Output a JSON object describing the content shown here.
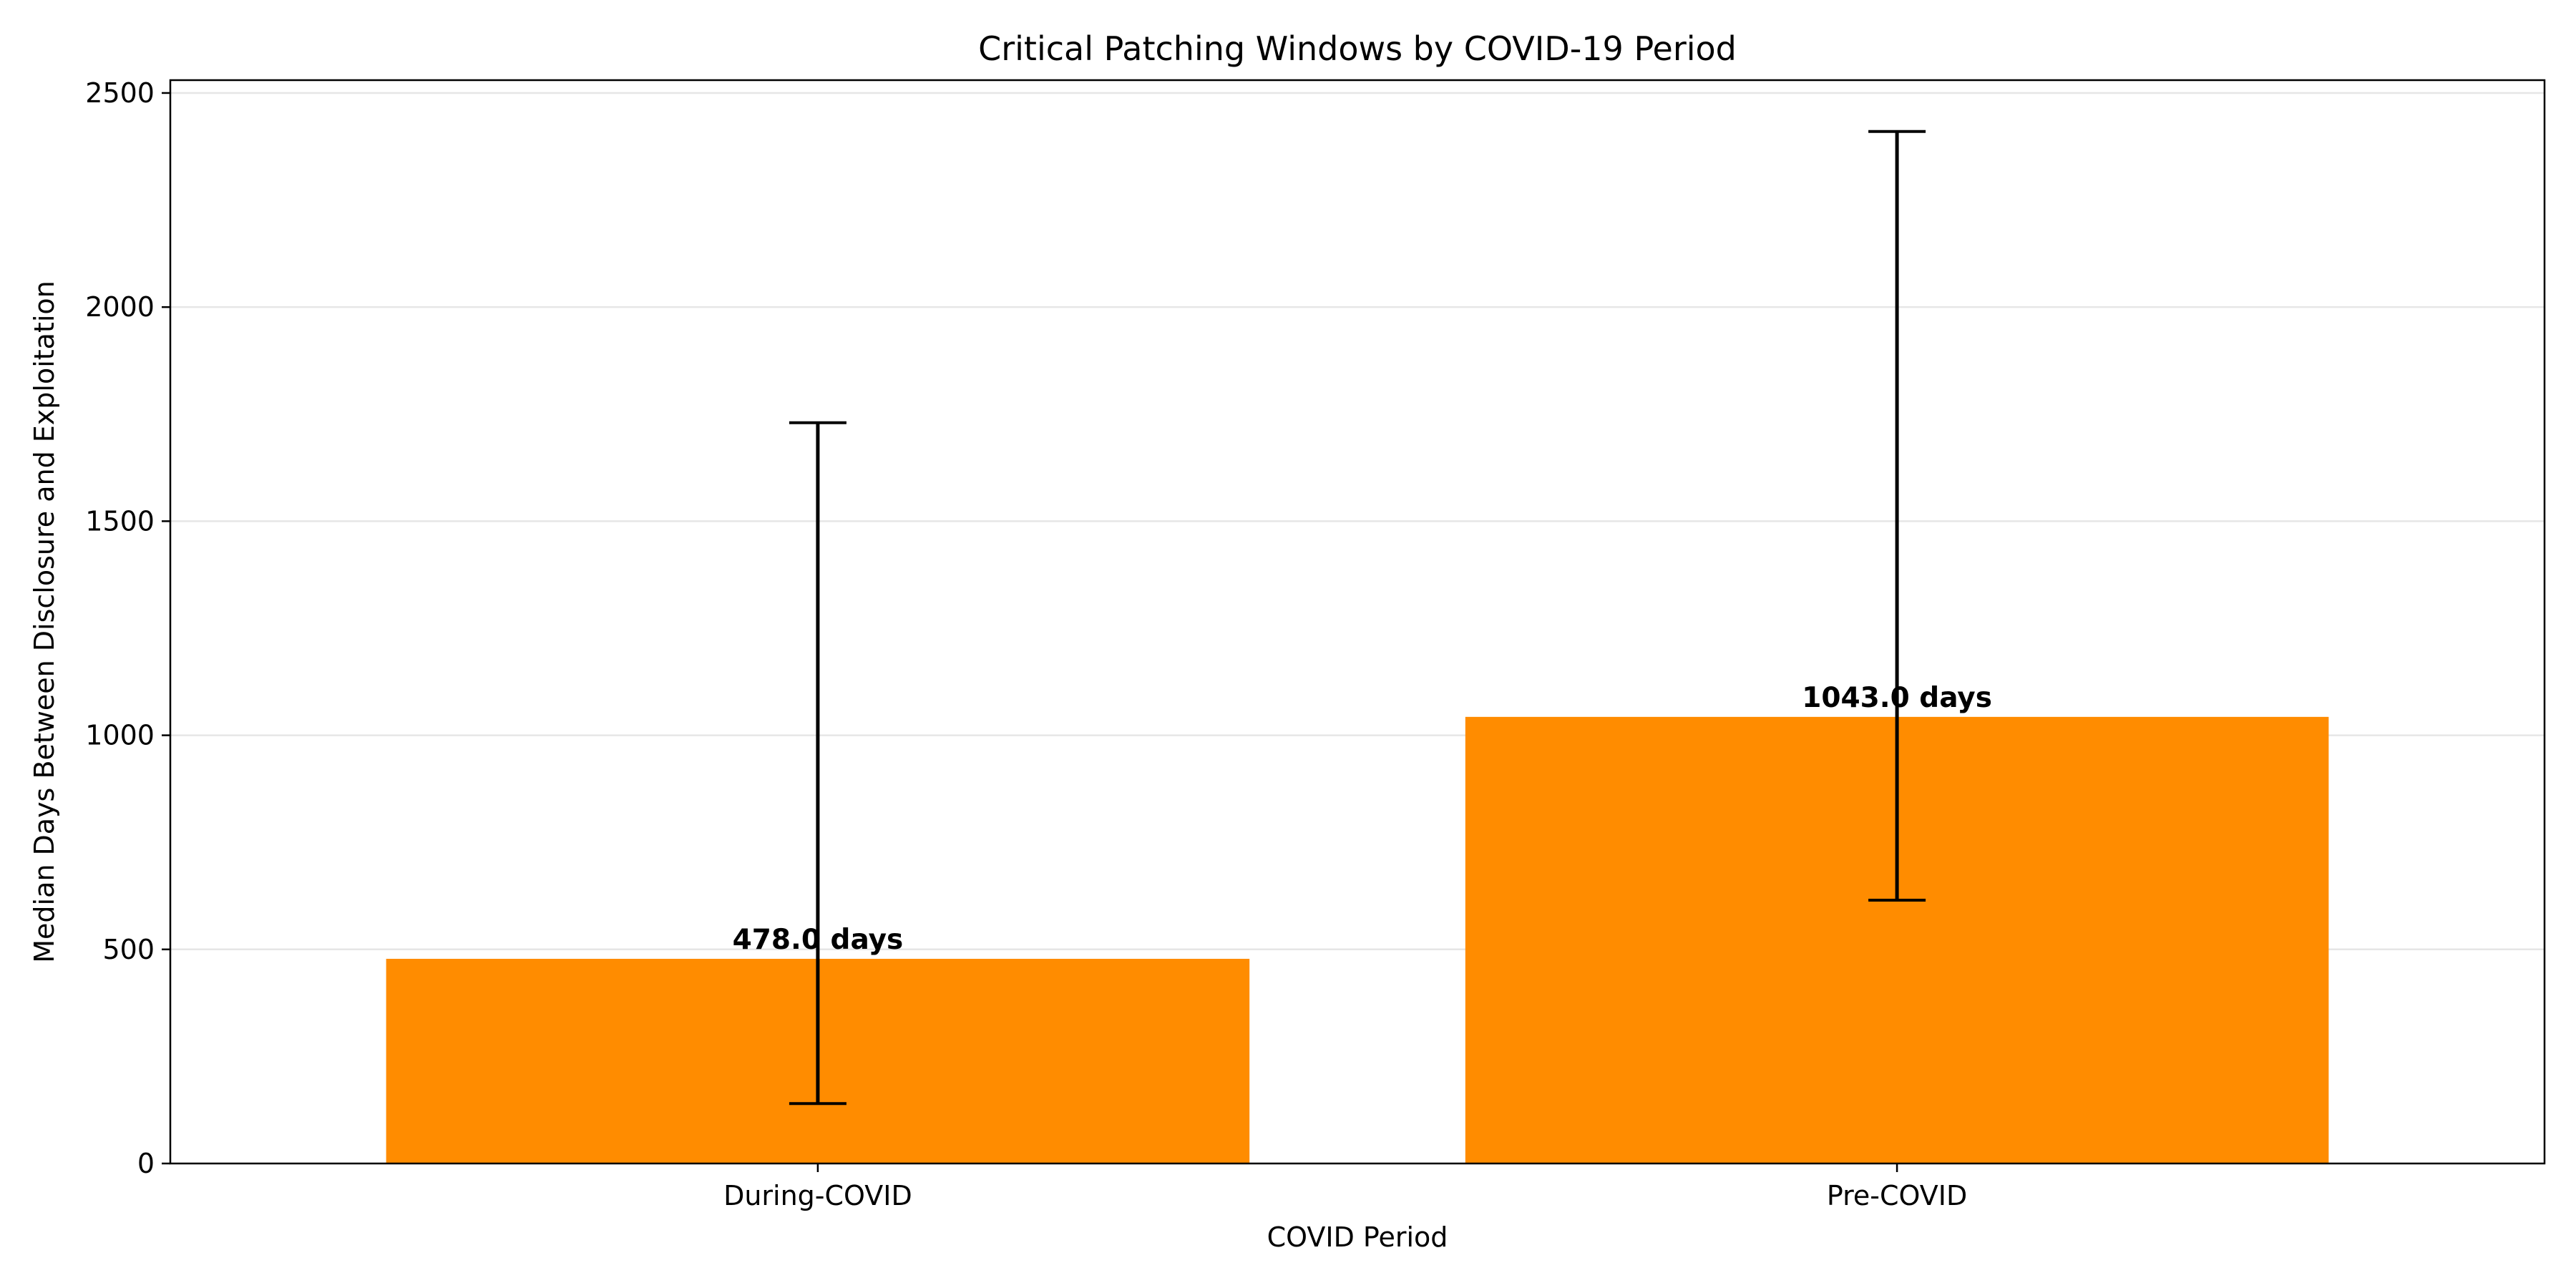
{
  "chart_data": {
    "type": "bar",
    "title": "Critical Patching Windows by COVID-19 Period",
    "xlabel": "COVID Period",
    "ylabel": "Median Days Between Disclosure and Exploitation",
    "categories": [
      "During-COVID",
      "Pre-COVID"
    ],
    "values": [
      478.0,
      1043.0
    ],
    "error_low": [
      140,
      615
    ],
    "error_high": [
      1730,
      2410
    ],
    "data_labels": [
      "478.0 days",
      "1043.0 days"
    ],
    "yticks": [
      0,
      500,
      1000,
      1500,
      2000,
      2500
    ],
    "ylim": [
      0,
      2530
    ],
    "grid": "horizontal",
    "bar_color": "#ff8c00",
    "grid_color": "#e6e6e6"
  }
}
